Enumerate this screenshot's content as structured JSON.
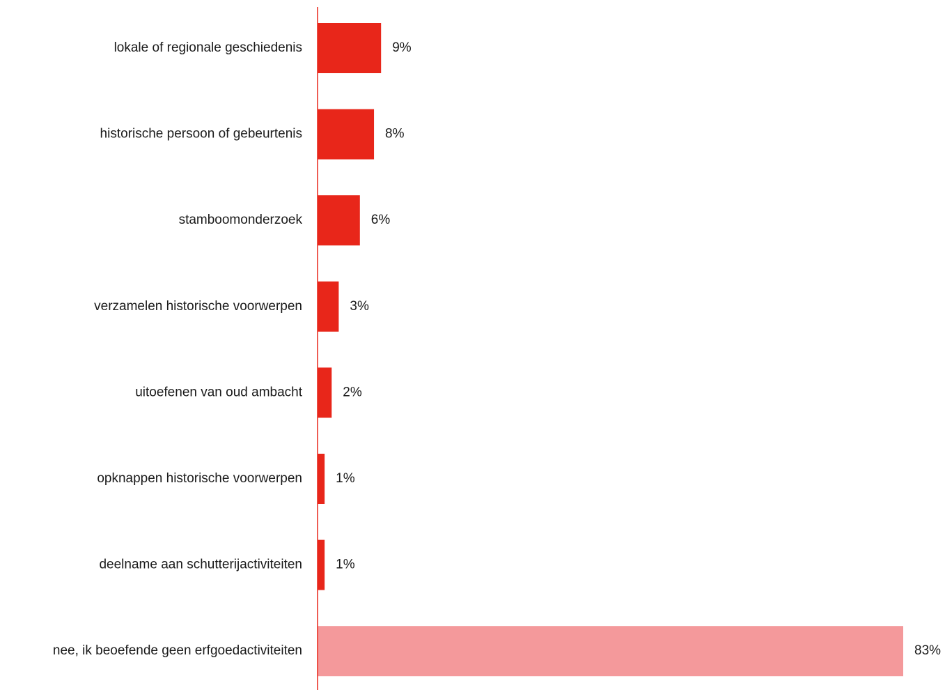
{
  "chart_data": {
    "type": "bar",
    "orientation": "horizontal",
    "categories": [
      "lokale of regionale geschiedenis",
      "historische persoon of gebeurtenis",
      "stamboomonderzoek",
      "verzamelen historische voorwerpen",
      "uitoefenen van oud ambacht",
      "opknappen historische voorwerpen",
      "deelname aan schutterijactiviteiten",
      "nee, ik beoefende geen erfgoedactiviteiten"
    ],
    "values": [
      9,
      8,
      6,
      3,
      2,
      1,
      1,
      83
    ],
    "value_labels": [
      "9%",
      "8%",
      "6%",
      "3%",
      "2%",
      "1%",
      "1%",
      "83%"
    ],
    "unit": "%",
    "bar_colors": [
      "#e8261a",
      "#e8261a",
      "#e8261a",
      "#e8261a",
      "#e8261a",
      "#e8261a",
      "#e8261a",
      "#f4999b"
    ],
    "axis_color": "#e8261a",
    "title": "",
    "xlabel": "",
    "ylabel": "",
    "xlim": [
      0,
      83
    ],
    "grid": false,
    "legend": "none"
  }
}
